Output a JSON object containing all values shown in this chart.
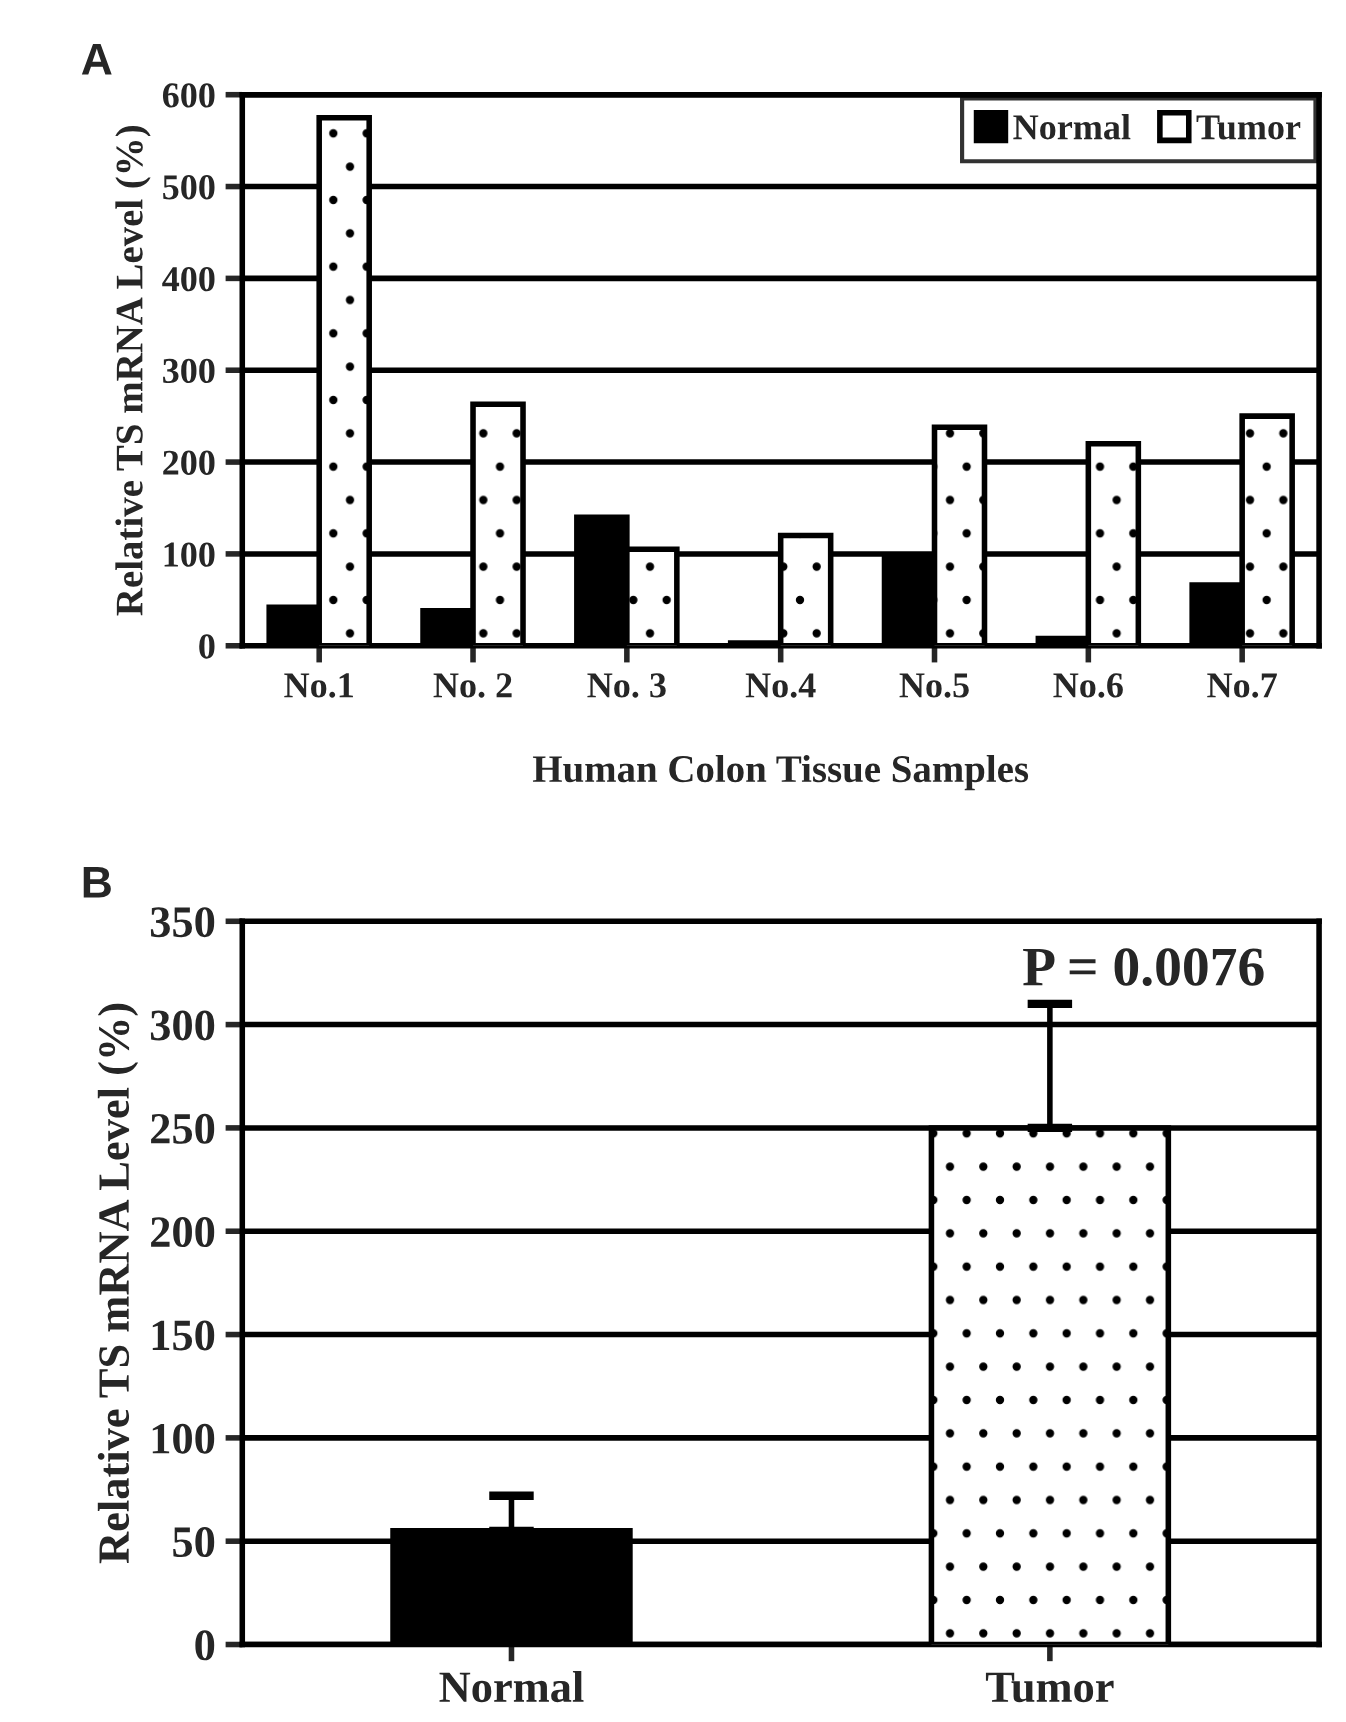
{
  "chart_data": [
    {
      "type": "bar",
      "xlabel": "Human Colon Tissue Samples",
      "ylabel": "Relative TS mRNA Level (%)",
      "annotations": [
        "A"
      ],
      "categories": [
        "No.1",
        "No. 2",
        "No. 3",
        "No.4",
        "No.5",
        "No.6",
        "No.7"
      ],
      "series": [
        {
          "name": "Normal",
          "color": "#000000",
          "values": [
            42,
            38,
            140,
            3,
            95,
            8,
            66
          ]
        },
        {
          "name": "Tumor",
          "color": "#ffffff",
          "values": [
            575,
            263,
            105,
            120,
            238,
            220,
            250
          ]
        }
      ],
      "ylim": [
        0,
        600
      ],
      "yticks": [
        0,
        100,
        200,
        300,
        400,
        500,
        600
      ],
      "grid": "y",
      "legend": "top right"
    },
    {
      "type": "bar",
      "ylabel": "Relative TS mRNA Level (%)",
      "annotations": [
        "B",
        "P = 0.0076"
      ],
      "categories": [
        "Normal",
        "Tumor"
      ],
      "values": [
        55,
        250
      ],
      "colors": [
        "#000000",
        "#ffffff"
      ],
      "errors": [
        [
          55,
          72
        ],
        [
          250,
          310
        ]
      ],
      "ylim": [
        0,
        350
      ],
      "yticks": [
        0,
        50,
        100,
        150,
        200,
        250,
        300,
        350
      ],
      "grid": "y"
    }
  ]
}
